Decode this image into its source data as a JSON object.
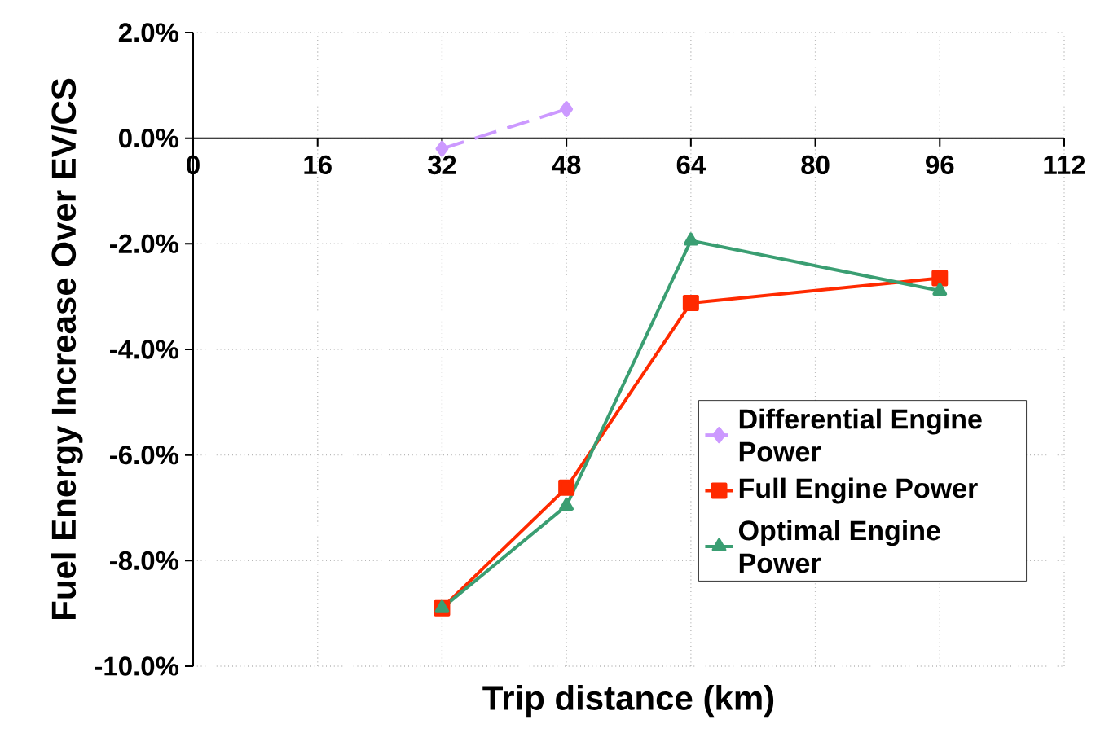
{
  "chart_data": {
    "type": "line",
    "xlabel": "Trip distance (km)",
    "ylabel": "Fuel Energy Increase Over EV/CS",
    "xlim": [
      0,
      112
    ],
    "xticks": [
      0,
      16,
      32,
      48,
      64,
      80,
      96,
      112
    ],
    "ylim": [
      -10,
      2
    ],
    "yticks": [
      {
        "value": 2,
        "label": "2.0%"
      },
      {
        "value": 0,
        "label": "0.0%"
      },
      {
        "value": -2,
        "label": "-2.0%"
      },
      {
        "value": -4,
        "label": "-4.0%"
      },
      {
        "value": -6,
        "label": "-6.0%"
      },
      {
        "value": -8,
        "label": "-8.0%"
      },
      {
        "value": -10,
        "label": "-10.0%"
      }
    ],
    "grid": true,
    "legend": "bottom right",
    "series": [
      {
        "name": "Differential Engine Power",
        "color": "#cc99ff",
        "marker": "diamond",
        "line_style": "dashed",
        "x": [
          32,
          48
        ],
        "values": [
          -0.2,
          0.55
        ]
      },
      {
        "name": "Full Engine Power",
        "color": "#ff2a00",
        "marker": "square",
        "line_style": "solid",
        "x": [
          32,
          48,
          64,
          96
        ],
        "values": [
          -8.9,
          -6.62,
          -3.12,
          -2.65
        ]
      },
      {
        "name": "Optimal Engine Power",
        "color": "#3a9e72",
        "marker": "triangle",
        "line_style": "solid",
        "x": [
          32,
          48,
          64,
          96
        ],
        "values": [
          -8.9,
          -6.96,
          -1.94,
          -2.89
        ]
      }
    ]
  }
}
